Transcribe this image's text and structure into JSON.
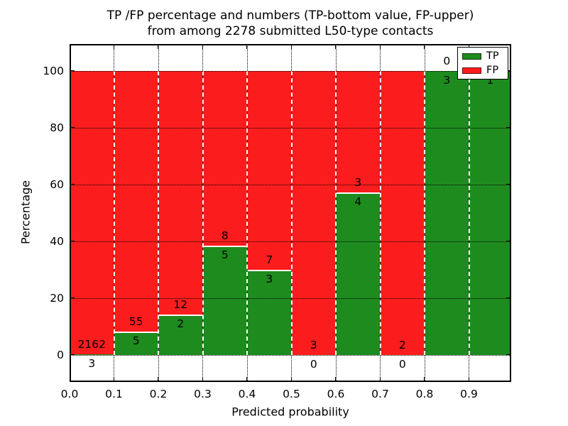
{
  "title": {
    "line1": "TP /FP percentage and numbers (TP-bottom value, FP-upper)",
    "line2": "from among 2278 submitted L50-type contacts"
  },
  "axes": {
    "xlabel": "Predicted probability",
    "ylabel": "Percentage",
    "yticks": [
      {
        "label": "0",
        "pct": 0
      },
      {
        "label": "20",
        "pct": 20
      },
      {
        "label": "40",
        "pct": 40
      },
      {
        "label": "60",
        "pct": 60
      },
      {
        "label": "80",
        "pct": 80
      },
      {
        "label": "100",
        "pct": 100
      }
    ],
    "xticks": [
      {
        "label": "0.0",
        "v": 0.0
      },
      {
        "label": "0.1",
        "v": 0.1
      },
      {
        "label": "0.2",
        "v": 0.2
      },
      {
        "label": "0.3",
        "v": 0.3
      },
      {
        "label": "0.4",
        "v": 0.4
      },
      {
        "label": "0.5",
        "v": 0.5
      },
      {
        "label": "0.6",
        "v": 0.6
      },
      {
        "label": "0.7",
        "v": 0.7
      },
      {
        "label": "0.8",
        "v": 0.8
      },
      {
        "label": "0.9",
        "v": 0.9
      }
    ]
  },
  "legend": [
    {
      "label": "TP",
      "color": "#1e8b1e"
    },
    {
      "label": "FP",
      "color": "#fb1d1d"
    }
  ],
  "colors": {
    "tp": "#1e8b1e",
    "fp": "#fb1d1d",
    "grid": "#000000",
    "frame": "#000000",
    "background": "#ffffff"
  },
  "chart_data": {
    "type": "bar",
    "stacked": true,
    "title": "TP /FP percentage and numbers (TP-bottom value, FP-upper) from among 2278 submitted L50-type contacts",
    "xlabel": "Predicted probability",
    "ylabel": "Percentage",
    "ylim_visible": [
      -9.5,
      109.5
    ],
    "yticks": [
      0,
      20,
      40,
      60,
      80,
      100
    ],
    "xlim": [
      0.0,
      0.995
    ],
    "bin_width": 0.1,
    "total_contacts": 2278,
    "grid": true,
    "legend_position": "upper right",
    "series_note": "green = TP percentage (bottom), red = FP percentage (top); labels show FP count (upper) and TP count (lower)",
    "bins": [
      {
        "range": [
          0.0,
          0.1
        ],
        "tp": 3,
        "fp": 2162,
        "tp_pct": 0.14
      },
      {
        "range": [
          0.1,
          0.2
        ],
        "tp": 5,
        "fp": 55,
        "tp_pct": 8.33
      },
      {
        "range": [
          0.2,
          0.3
        ],
        "tp": 2,
        "fp": 12,
        "tp_pct": 14.29
      },
      {
        "range": [
          0.3,
          0.4
        ],
        "tp": 5,
        "fp": 8,
        "tp_pct": 38.46
      },
      {
        "range": [
          0.4,
          0.5
        ],
        "tp": 3,
        "fp": 7,
        "tp_pct": 30.0
      },
      {
        "range": [
          0.5,
          0.6
        ],
        "tp": 0,
        "fp": 3,
        "tp_pct": 0.0
      },
      {
        "range": [
          0.6,
          0.7
        ],
        "tp": 4,
        "fp": 3,
        "tp_pct": 57.14
      },
      {
        "range": [
          0.7,
          0.8
        ],
        "tp": 0,
        "fp": 2,
        "tp_pct": 0.0
      },
      {
        "range": [
          0.8,
          0.9
        ],
        "tp": 3,
        "fp": 0,
        "tp_pct": 100.0
      },
      {
        "range": [
          0.9,
          1.0
        ],
        "tp": 1,
        "fp": 0,
        "tp_pct": 100.0
      }
    ]
  }
}
